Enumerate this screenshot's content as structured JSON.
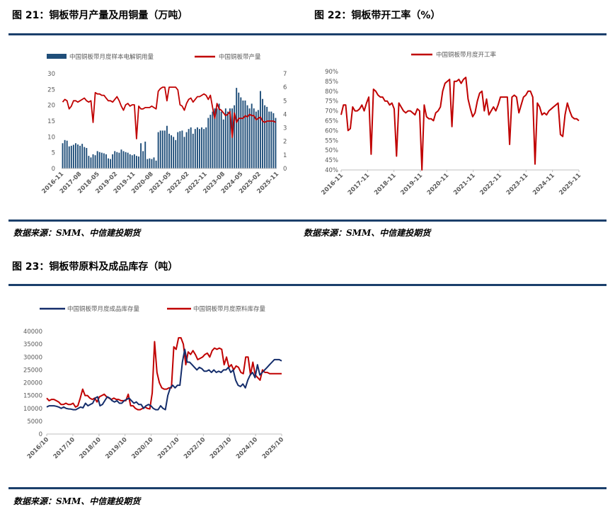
{
  "fig21": {
    "title": "图 21：铜板带月产量及用铜量（万吨）",
    "source": "数据来源：SMM、中信建投期货",
    "chart_data": {
      "type": "bar",
      "legend_position": "top",
      "x_tick_labels": [
        "2016-11",
        "2017-08",
        "2018-05",
        "2019-02",
        "2019-11",
        "2020-08",
        "2021-05",
        "2022-02",
        "2022-11",
        "2023-08",
        "2024-05",
        "2025-02",
        "2025-11"
      ],
      "y_left_ticks": [
        "0",
        "5",
        "10",
        "15",
        "20",
        "25",
        "30"
      ],
      "y_right_ticks": [
        "0",
        "1",
        "2",
        "3",
        "4",
        "5",
        "6",
        "7"
      ],
      "ylim_left": [
        0,
        30
      ],
      "ylim_right": [
        0,
        7
      ],
      "series": [
        {
          "name": "中国铜板带月度样本电解铜用量",
          "type": "bar",
          "axis": "left",
          "color": "#1f4e79",
          "values": [
            8.0,
            9.0,
            8.8,
            7.0,
            7.2,
            7.5,
            8.0,
            7.6,
            7.2,
            7.8,
            6.8,
            6.5,
            4.0,
            3.5,
            4.5,
            4.2,
            5.5,
            5.2,
            5.0,
            4.8,
            4.5,
            3.2,
            3.0,
            4.5,
            5.5,
            5.2,
            5.0,
            6.0,
            5.5,
            5.2,
            5.0,
            4.5,
            4.2,
            4.5,
            4.0,
            3.8,
            8.0,
            5.5,
            8.5,
            3.0,
            3.2,
            3.0,
            3.5,
            2.5,
            11.5,
            12.0,
            12.0,
            12.0,
            13.5,
            11.0,
            10.5,
            10.0,
            9.0,
            11.5,
            11.8,
            12.0,
            10.0,
            11.5,
            12.5,
            13.0,
            11.0,
            12.5,
            13.0,
            12.5,
            13.0,
            12.5,
            13.0,
            16.0,
            17.0,
            18.0,
            19.0,
            19.0,
            20.5,
            18.0,
            15.5,
            19.0,
            18.0,
            19.0,
            19.0,
            20.0,
            25.5,
            24.0,
            22.5,
            21.5,
            21.5,
            20.0,
            19.0,
            20.5,
            19.0,
            18.0,
            18.5,
            24.5,
            22.0,
            20.0,
            19.5,
            18.0,
            18.0,
            17.5,
            16.0
          ]
        },
        {
          "name": "中国铜板带产量",
          "type": "line",
          "axis": "right",
          "color": "#c00000",
          "values": [
            4.9,
            5.1,
            5.0,
            4.4,
            4.6,
            5.0,
            5.0,
            4.9,
            5.0,
            5.1,
            5.2,
            5.0,
            4.9,
            5.0,
            3.4,
            5.6,
            5.5,
            5.5,
            5.4,
            5.4,
            5.2,
            5.0,
            5.0,
            4.9,
            5.1,
            5.3,
            5.0,
            4.6,
            4.3,
            4.7,
            4.8,
            4.6,
            4.7,
            4.7,
            2.2,
            4.6,
            4.4,
            4.4,
            4.5,
            4.5,
            4.5,
            4.6,
            4.5,
            4.4,
            5.7,
            5.9,
            6.0,
            6.0,
            5.0,
            6.0,
            6.0,
            6.0,
            6.0,
            5.8,
            4.7,
            4.6,
            4.3,
            4.8,
            5.1,
            5.2,
            4.9,
            5.1,
            5.3,
            5.3,
            5.4,
            5.5,
            5.4,
            5.1,
            5.4,
            4.5,
            3.7,
            4.8,
            4.4,
            4.3,
            4.1,
            3.9,
            4.0,
            4.2,
            2.3,
            4.1,
            3.4,
            3.7,
            3.7,
            3.7,
            3.9,
            3.8,
            4.0,
            3.9,
            3.9,
            3.6,
            3.7,
            3.8,
            3.5,
            3.4,
            3.5,
            3.5,
            3.5,
            3.5,
            3.4
          ]
        }
      ]
    }
  },
  "fig22": {
    "title": "图 22：铜板带开工率（%）",
    "source": "数据来源：SMM、中信建投期货",
    "chart_data": {
      "type": "line",
      "legend_position": "top",
      "x_tick_labels": [
        "2016-11",
        "2017-11",
        "2018-11",
        "2019-11",
        "2020-11",
        "2021-11",
        "2022-11",
        "2023-11",
        "2024-11",
        "2025-11"
      ],
      "y_ticks": [
        "40%",
        "45%",
        "50%",
        "55%",
        "60%",
        "65%",
        "70%",
        "75%",
        "80%",
        "85%",
        "90%"
      ],
      "ylim": [
        40,
        90
      ],
      "series": [
        {
          "name": "中国铜板带月度开工率",
          "color": "#c00000",
          "values": [
            68,
            73,
            73,
            60,
            61,
            72,
            70,
            70,
            71,
            73,
            70,
            74,
            77,
            48,
            81,
            80,
            78,
            77,
            77,
            75,
            75,
            73,
            74,
            71,
            47,
            74,
            72,
            70,
            69,
            70,
            70,
            69,
            68,
            71,
            70,
            40,
            73,
            67,
            66,
            66,
            65,
            69,
            70,
            72,
            80,
            84,
            85,
            86,
            62,
            85,
            85,
            86,
            84,
            86,
            87,
            76,
            71,
            67,
            69,
            75,
            79,
            80,
            70,
            76,
            68,
            70,
            72,
            70,
            73,
            77,
            77,
            77,
            77,
            53,
            77,
            78,
            77,
            69,
            73,
            77,
            78,
            80,
            80,
            77,
            43,
            74,
            72,
            68,
            69,
            68,
            70,
            71,
            72,
            73,
            74,
            58,
            57,
            68,
            74,
            70,
            67,
            66,
            66,
            65
          ]
        }
      ]
    }
  },
  "fig23": {
    "title": "图 23：铜板带原料及成品库存（吨）",
    "source": "数据来源：SMM、中信建投期货",
    "chart_data": {
      "type": "line",
      "legend_position": "top",
      "x_tick_labels": [
        "2016/10",
        "2017/10",
        "2018/10",
        "2019/10",
        "2020/10",
        "2021/10",
        "2022/10",
        "2023/10",
        "2024/10",
        "2025/10"
      ],
      "y_ticks": [
        "0",
        "5000",
        "10000",
        "15000",
        "20000",
        "25000",
        "30000",
        "35000",
        "40000"
      ],
      "ylim": [
        0,
        40000
      ],
      "series": [
        {
          "name": "中国铜板带月度成品库存量",
          "color": "#142d6b",
          "values": [
            10500,
            11000,
            11000,
            11000,
            10800,
            10500,
            10000,
            10500,
            10000,
            9800,
            9700,
            9500,
            9500,
            10000,
            10500,
            10200,
            12000,
            11000,
            11500,
            12000,
            14000,
            14500,
            11000,
            11500,
            13000,
            14500,
            14000,
            13000,
            12500,
            13000,
            12000,
            12000,
            13000,
            13500,
            14000,
            13000,
            12000,
            12500,
            11500,
            11500,
            10000,
            11000,
            11500,
            11000,
            10000,
            9500,
            9500,
            11000,
            10000,
            9500,
            15000,
            18000,
            19000,
            18000,
            19000,
            19000,
            28000,
            33000,
            28000,
            28000,
            27000,
            26000,
            25000,
            26000,
            25500,
            24500,
            24500,
            25000,
            24000,
            25000,
            24000,
            24500,
            24000,
            25000,
            25000,
            26000,
            24000,
            25000,
            21000,
            19000,
            18500,
            19500,
            18000,
            21000,
            23000,
            24000,
            22000,
            27000,
            23000,
            24000,
            25000,
            26000,
            27000,
            28000,
            29000,
            29000,
            29000,
            28500
          ]
        },
        {
          "name": "中国铜板带月度原料库存量",
          "color": "#c00000",
          "values": [
            14000,
            13000,
            13500,
            13500,
            13000,
            12500,
            11500,
            11500,
            12000,
            11500,
            11500,
            12000,
            10500,
            11000,
            14000,
            17500,
            15000,
            15000,
            14000,
            13500,
            14000,
            12500,
            14500,
            15000,
            15500,
            14500,
            14000,
            13500,
            14000,
            13500,
            13500,
            13000,
            13000,
            13000,
            15500,
            11000,
            11000,
            10000,
            9500,
            9500,
            10000,
            10500,
            10000,
            9800,
            16000,
            36000,
            24000,
            20000,
            18000,
            17500,
            17500,
            18000,
            18000,
            34000,
            33000,
            37500,
            37500,
            35000,
            27000,
            32000,
            31000,
            32500,
            31000,
            29000,
            29500,
            30000,
            31000,
            31500,
            30000,
            32500,
            33500,
            33000,
            33500,
            33000,
            27000,
            30000,
            26000,
            27000,
            25000,
            26500,
            26000,
            24000,
            23500,
            30000,
            30000,
            23000,
            28000,
            23000,
            22000,
            21000,
            25000,
            24000,
            24000,
            23500,
            23500,
            23500,
            23500,
            23500,
            23500
          ]
        }
      ]
    }
  }
}
